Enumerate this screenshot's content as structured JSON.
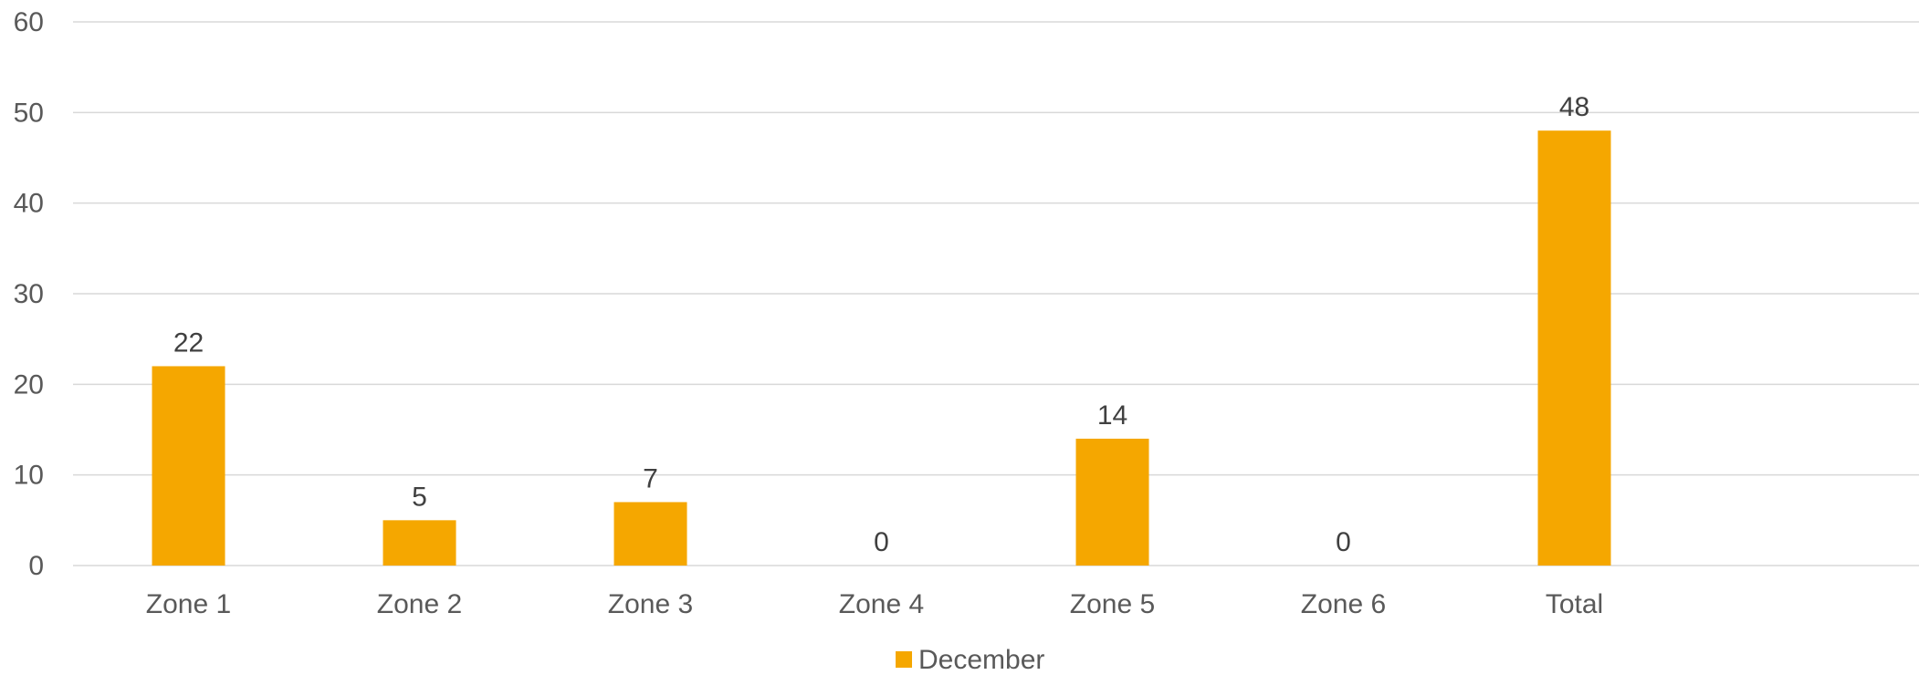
{
  "chart_data": {
    "type": "bar",
    "categories": [
      "Zone 1",
      "Zone 2",
      "Zone 3",
      "Zone 4",
      "Zone 5",
      "Zone 6",
      "Total"
    ],
    "series": [
      {
        "name": "December",
        "values": [
          22,
          5,
          7,
          0,
          14,
          0,
          48
        ],
        "color": "#F5A700"
      }
    ],
    "ylim": [
      0,
      60
    ],
    "yticks": [
      0,
      10,
      20,
      30,
      40,
      50,
      60
    ],
    "grid": true,
    "data_labels": true,
    "legend": "bottom",
    "colors": {
      "grid": "#D9D9D9",
      "text": "#595959",
      "label": "#404040"
    }
  }
}
